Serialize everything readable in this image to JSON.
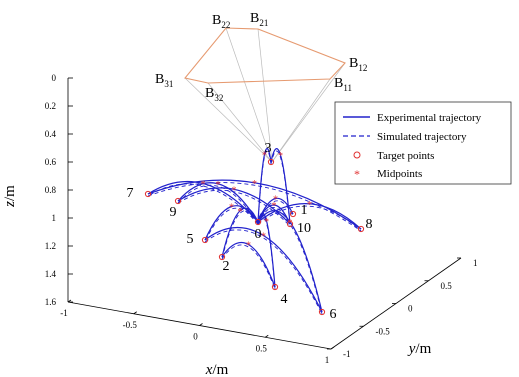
{
  "chart_data": {
    "type": "line",
    "projection": "3d",
    "xlabel_var": "x",
    "xlabel_unit": "/m",
    "ylabel_var": "y",
    "ylabel_unit": "/m",
    "zlabel_var": "z",
    "zlabel_unit": "/m",
    "xlim": [
      -1,
      1
    ],
    "ylim": [
      -1,
      1
    ],
    "zlim": [
      0,
      1.6
    ],
    "z_reversed": true,
    "x_ticks": [
      "-1",
      "-0.5",
      "0",
      "0.5",
      "1"
    ],
    "y_ticks": [
      "-1",
      "-0.5",
      "0",
      "0.5",
      "1"
    ],
    "z_ticks": [
      "0",
      "0.2",
      "0.4",
      "0.6",
      "0.8",
      "1",
      "1.2",
      "1.4",
      "1.6"
    ],
    "grid": false,
    "legend_position": "right",
    "legend": [
      {
        "label": "Experimental trajectory",
        "style": "solid-line",
        "color": "#2222cc"
      },
      {
        "label": "Simulated trajectory",
        "style": "dashed-line",
        "color": "#2222cc"
      },
      {
        "label": "Target points",
        "style": "circle-marker",
        "color": "#e03030"
      },
      {
        "label": "Midpoints",
        "style": "star-marker",
        "color": "#e03030"
      }
    ],
    "base_platform": {
      "color": "#e69a70",
      "cable_color": "#bbbbbb",
      "vertices": [
        {
          "label_main": "B",
          "label_sub": "21",
          "x": -0.05,
          "y": 0.55
        },
        {
          "label_main": "B",
          "label_sub": "12",
          "x": 0.9,
          "y": 0.7
        },
        {
          "label_main": "B",
          "label_sub": "11",
          "x": 0.85,
          "y": 0.6
        },
        {
          "label_main": "B",
          "label_sub": "32",
          "x": -0.55,
          "y": 0.0
        },
        {
          "label_main": "B",
          "label_sub": "31",
          "x": -0.85,
          "y": 0.3
        },
        {
          "label_main": "B",
          "label_sub": "22",
          "x": -0.3,
          "y": 0.8
        }
      ]
    },
    "target_points": [
      {
        "label": "0",
        "x": -0.05,
        "y": 0.05,
        "z": 0.95
      },
      {
        "label": "1",
        "x": 0.3,
        "y": 0.1,
        "z": 0.95
      },
      {
        "label": "2",
        "x": -0.35,
        "y": -0.35,
        "z": 1.2
      },
      {
        "label": "3",
        "x": 0.05,
        "y": 0.55,
        "z": 0.75
      },
      {
        "label": "4",
        "x": 0.45,
        "y": 0.0,
        "z": 1.35
      },
      {
        "label": "5",
        "x": -0.55,
        "y": -0.1,
        "z": 1.05
      },
      {
        "label": "6",
        "x": 0.95,
        "y": -0.2,
        "z": 1.35
      },
      {
        "label": "7",
        "x": -0.8,
        "y": 0.2,
        "z": 0.7
      },
      {
        "label": "8",
        "x": 0.95,
        "y": 0.4,
        "z": 1.1
      },
      {
        "label": "9",
        "x": -0.55,
        "y": 0.1,
        "z": 0.78
      },
      {
        "label": "10",
        "x": 0.25,
        "y": 0.1,
        "z": 0.95
      }
    ],
    "series": [
      {
        "from": "0",
        "to": "1"
      },
      {
        "from": "0",
        "to": "2"
      },
      {
        "from": "0",
        "to": "3"
      },
      {
        "from": "0",
        "to": "4"
      },
      {
        "from": "0",
        "to": "5"
      },
      {
        "from": "0",
        "to": "6"
      },
      {
        "from": "0",
        "to": "7"
      },
      {
        "from": "0",
        "to": "8"
      },
      {
        "from": "0",
        "to": "9"
      },
      {
        "from": "0",
        "to": "10"
      },
      {
        "from": "2",
        "to": "4"
      },
      {
        "from": "5",
        "to": "6"
      },
      {
        "from": "9",
        "to": "10"
      },
      {
        "from": "7",
        "to": "8"
      },
      {
        "from": "3",
        "to": "10"
      }
    ]
  }
}
